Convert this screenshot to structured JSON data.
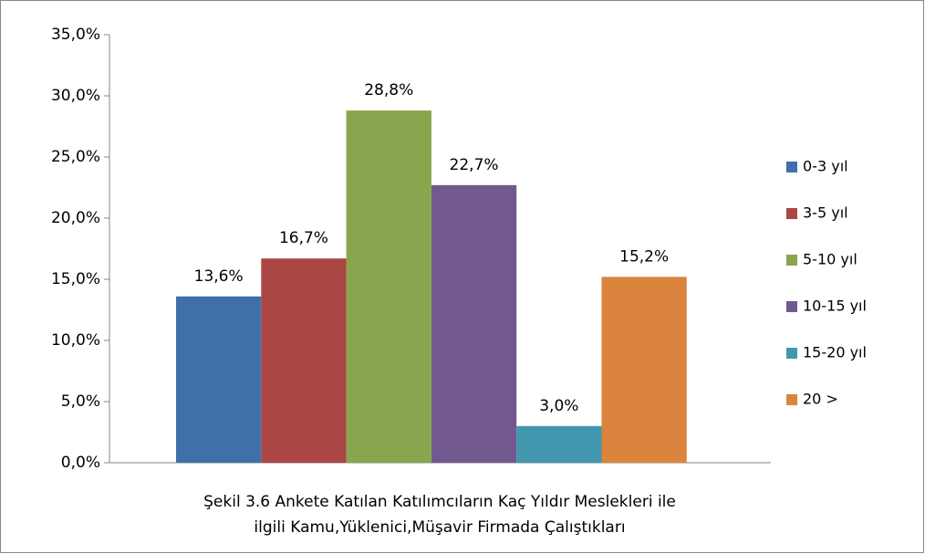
{
  "chart_data": {
    "type": "bar",
    "xlabel": [
      "Şekil 3.6 Ankete Katılan Katılımcıların Kaç Yıldır Meslekleri ile",
      "ilgili Kamu,Yüklenici,Müşavir Firmada Çalıştıkları"
    ],
    "series": [
      {
        "name": "0-3 yıl",
        "color": "#4070aa",
        "values": [
          13.6
        ],
        "value_labels": [
          "13,6%"
        ]
      },
      {
        "name": "3-5 yıl",
        "color": "#aa4643",
        "values": [
          16.7
        ],
        "value_labels": [
          "16,7%"
        ]
      },
      {
        "name": "5-10 yıl",
        "color": "#89a54e",
        "values": [
          28.8
        ],
        "value_labels": [
          "28,8%"
        ]
      },
      {
        "name": "10-15 yıl",
        "color": "#71588f",
        "values": [
          22.7
        ],
        "value_labels": [
          "22,7%"
        ]
      },
      {
        "name": "15-20 yıl",
        "color": "#4198af",
        "values": [
          3.0
        ],
        "value_labels": [
          "3,0%"
        ]
      },
      {
        "name": "20 >",
        "color": "#db843d",
        "values": [
          15.2
        ],
        "value_labels": [
          "15,2%"
        ]
      }
    ],
    "ylim": [
      0,
      35
    ],
    "yticks": [
      {
        "value": 0,
        "label": "0,0%"
      },
      {
        "value": 5,
        "label": "5,0%"
      },
      {
        "value": 10,
        "label": "10,0%"
      },
      {
        "value": 15,
        "label": "15,0%"
      },
      {
        "value": 20,
        "label": "20,0%"
      },
      {
        "value": 25,
        "label": "25,0%"
      },
      {
        "value": 30,
        "label": "30,0%"
      },
      {
        "value": 35,
        "label": "35,0%"
      }
    ],
    "legend": "right"
  }
}
